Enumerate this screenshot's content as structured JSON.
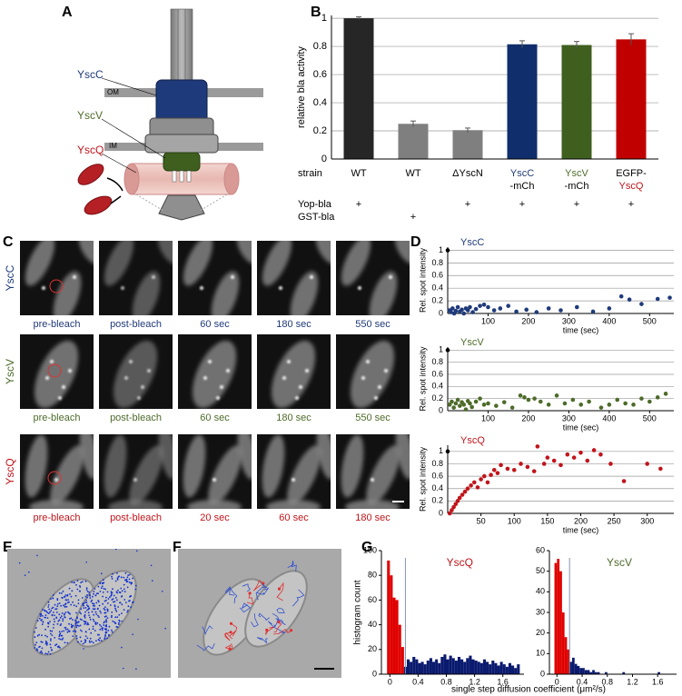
{
  "panel_labels": [
    "A",
    "B",
    "C",
    "D",
    "E",
    "F",
    "G"
  ],
  "diagram": {
    "labels": [
      "YscC",
      "YscV",
      "YscQ"
    ],
    "membranes": [
      "OM",
      "IM"
    ]
  },
  "microscopy": {
    "rows": [
      {
        "name": "YscC",
        "color": "#1f3a7a",
        "captions": [
          "pre-bleach",
          "post-bleach",
          "60 sec",
          "180 sec",
          "550 sec"
        ]
      },
      {
        "name": "YscV",
        "color": "#4d6b2a",
        "captions": [
          "pre-bleach",
          "post-bleach",
          "60 sec",
          "180 sec",
          "550 sec"
        ]
      },
      {
        "name": "YscQ",
        "color": "#c0151b",
        "captions": [
          "pre-bleach",
          "post-bleach",
          "20 sec",
          "60 sec",
          "180 sec"
        ]
      }
    ]
  },
  "chart_data": [
    {
      "type": "bar",
      "ylabel": "relative bla activity",
      "categories": [
        [
          "WT"
        ],
        [
          "WT"
        ],
        [
          "ΔYscN"
        ],
        [
          "YscC",
          "-mCh"
        ],
        [
          "YscV",
          "-mCh"
        ],
        [
          "EGFP-",
          "YscQ"
        ]
      ],
      "label_colors": [
        [
          "#000"
        ],
        [
          "#000"
        ],
        [
          "#000"
        ],
        [
          "#1f3a7a",
          "#000"
        ],
        [
          "#4d6b2a",
          "#000"
        ],
        [
          "#000",
          "#c0151b"
        ]
      ],
      "values": [
        1.0,
        0.25,
        0.205,
        0.815,
        0.81,
        0.85
      ],
      "errors": [
        0.01,
        0.02,
        0.015,
        0.025,
        0.025,
        0.04
      ],
      "colors": [
        "#262626",
        "#7f7f7f",
        "#7f7f7f",
        "#0f2e6b",
        "#3f5f1f",
        "#c00000"
      ],
      "ylim": [
        0,
        1.02
      ],
      "yticks": [
        0,
        0.2,
        0.4,
        0.6,
        0.8,
        1
      ],
      "grid": true,
      "row_label": "strain",
      "rows": [
        {
          "name": "Yop-bla",
          "marks": [
            "+",
            null,
            "+",
            "+",
            "+",
            "+"
          ]
        },
        {
          "name": "GST-bla",
          "marks": [
            null,
            "+",
            null,
            null,
            null,
            null
          ]
        }
      ]
    },
    {
      "type": "scatter",
      "title": "YscC",
      "color": "#1f3a7a",
      "first_color": "#000",
      "xlabel": "time (sec)",
      "ylabel": "Rel. spot intensity",
      "x": [
        0,
        4,
        8,
        12,
        16,
        20,
        25,
        30,
        35,
        40,
        45,
        50,
        55,
        62,
        70,
        80,
        90,
        100,
        115,
        130,
        150,
        170,
        195,
        220,
        250,
        280,
        320,
        360,
        400,
        430,
        450,
        480,
        520,
        550
      ],
      "y": [
        1,
        0.05,
        0.02,
        0.08,
        0,
        0.04,
        0.1,
        0.03,
        0.06,
        0,
        0.08,
        0.05,
        0.1,
        0.02,
        0.07,
        0.12,
        0.14,
        0.1,
        0.05,
        0.08,
        0.12,
        0.03,
        0.06,
        0.02,
        0.08,
        0.05,
        0.1,
        0.03,
        0.08,
        0.27,
        0.22,
        0.15,
        0.23,
        0.25
      ],
      "xlim": [
        0,
        560
      ],
      "ylim": [
        0,
        1.05
      ],
      "xticks": [
        100,
        200,
        300,
        400,
        500
      ],
      "yticks": [
        0,
        0.2,
        0.4,
        0.6,
        0.8,
        1
      ],
      "grid": true
    },
    {
      "type": "scatter",
      "title": "YscV",
      "color": "#4d6b2a",
      "first_color": "#000",
      "xlabel": "time (sec)",
      "ylabel": "Rel. spot intensity",
      "x": [
        0,
        5,
        10,
        15,
        20,
        25,
        30,
        35,
        40,
        45,
        50,
        55,
        60,
        70,
        80,
        90,
        100,
        120,
        140,
        160,
        180,
        190,
        200,
        215,
        230,
        250,
        270,
        290,
        310,
        330,
        350,
        380,
        400,
        420,
        440,
        460,
        480,
        500,
        520,
        540
      ],
      "y": [
        1,
        0.1,
        0.15,
        0.05,
        0.12,
        0.18,
        0.08,
        0.14,
        0.1,
        0.02,
        0.16,
        0.12,
        0.06,
        0.15,
        0.2,
        0.1,
        0.12,
        0.08,
        0.14,
        0.05,
        0.25,
        0.22,
        0.18,
        0.2,
        0.15,
        0.1,
        0.25,
        0.12,
        0.18,
        0.1,
        0.15,
        0.05,
        0.1,
        0.18,
        0.12,
        0.1,
        0.2,
        0.15,
        0.22,
        0.28
      ],
      "xlim": [
        0,
        560
      ],
      "ylim": [
        0,
        1.05
      ],
      "xticks": [
        100,
        200,
        300,
        400,
        500
      ],
      "yticks": [
        0,
        0.2,
        0.4,
        0.6,
        0.8,
        1
      ],
      "grid": true
    },
    {
      "type": "scatter",
      "title": "YscQ",
      "color": "#c0151b",
      "first_color": "#000",
      "xlabel": "time (sec)",
      "ylabel": "Rel. spot intensity",
      "x": [
        0,
        3,
        6,
        9,
        12,
        15,
        18,
        22,
        26,
        30,
        35,
        40,
        45,
        50,
        55,
        60,
        65,
        70,
        75,
        80,
        90,
        100,
        110,
        120,
        130,
        135,
        145,
        150,
        160,
        170,
        180,
        190,
        200,
        210,
        220,
        230,
        245,
        265,
        300,
        320
      ],
      "y": [
        1,
        0,
        0.05,
        0.1,
        0.15,
        0.2,
        0.25,
        0.3,
        0.35,
        0.4,
        0.45,
        0.5,
        0.42,
        0.55,
        0.6,
        0.5,
        0.62,
        0.7,
        0.65,
        0.78,
        0.72,
        0.7,
        0.8,
        0.75,
        0.68,
        1.08,
        0.8,
        0.9,
        0.85,
        0.78,
        0.95,
        0.9,
        0.98,
        0.85,
        1.02,
        0.95,
        0.8,
        0.52,
        0.8,
        0.72
      ],
      "xlim": [
        0,
        340
      ],
      "ylim": [
        0,
        1.1
      ],
      "xticks": [
        50,
        100,
        150,
        200,
        250,
        300
      ],
      "yticks": [
        0,
        0.2,
        0.4,
        0.6,
        0.8,
        1
      ],
      "grid": true
    },
    {
      "type": "histogram",
      "title": "YscQ",
      "title_color": "#c0151b",
      "ylabel": "histogram count",
      "xlabel": "single step diffusion coefficient (μm²/s)",
      "bins": [
        -0.04,
        0,
        0.04,
        0.08,
        0.12,
        0.16,
        0.2,
        0.24,
        0.28,
        0.32,
        0.36,
        0.4,
        0.44,
        0.48,
        0.52,
        0.56,
        0.6,
        0.64,
        0.68,
        0.72,
        0.76,
        0.8,
        0.84,
        0.88,
        0.92,
        0.96,
        1,
        1.04,
        1.08,
        1.12,
        1.16,
        1.2,
        1.24,
        1.28,
        1.32,
        1.36,
        1.4,
        1.44,
        1.48,
        1.52,
        1.56,
        1.6,
        1.64,
        1.68,
        1.72,
        1.76,
        1.8,
        1.84
      ],
      "counts": [
        92,
        80,
        62,
        60,
        40,
        22,
        6,
        12,
        10,
        14,
        12,
        9,
        10,
        8,
        11,
        13,
        10,
        12,
        9,
        14,
        16,
        12,
        15,
        13,
        11,
        14,
        12,
        10,
        13,
        15,
        12,
        11,
        10,
        9,
        12,
        10,
        8,
        11,
        9,
        7,
        10,
        8,
        6,
        9,
        7,
        5,
        8
      ],
      "colors": [
        "#e00000",
        "#0a1a6e"
      ],
      "cutoff": 0.22,
      "xlim": [
        -0.12,
        1.9
      ],
      "ylim": [
        0,
        100
      ],
      "xticks": [
        0,
        0.4,
        0.8,
        1.2,
        1.6
      ],
      "yticks": [
        0,
        20,
        40,
        60,
        80,
        100
      ]
    },
    {
      "type": "histogram",
      "title": "YscV",
      "title_color": "#4d6b2a",
      "bins": [
        -0.04,
        0,
        0.04,
        0.08,
        0.12,
        0.16,
        0.2,
        0.24,
        0.28,
        0.32,
        0.36,
        0.4,
        0.44,
        0.48,
        0.52,
        0.56,
        0.6,
        0.64,
        0.68,
        0.72,
        0.76,
        0.8,
        0.84,
        0.88,
        0.92,
        0.96,
        1,
        1.04,
        1.08,
        1.12,
        1.16,
        1.2,
        1.24,
        1.28,
        1.32,
        1.36,
        1.4,
        1.44,
        1.48,
        1.52,
        1.56,
        1.6,
        1.64,
        1.68,
        1.72,
        1.76,
        1.8,
        1.84
      ],
      "counts": [
        54,
        56,
        50,
        30,
        18,
        12,
        6,
        8,
        5,
        4,
        3,
        3,
        2,
        2,
        1,
        2,
        1,
        1,
        0,
        0,
        1,
        0,
        0,
        0,
        0,
        0,
        0,
        1,
        0,
        0,
        0,
        0,
        0,
        0,
        0,
        0,
        0,
        0,
        0,
        0,
        0,
        1,
        0,
        0,
        0,
        0,
        0
      ],
      "colors": [
        "#e00000",
        "#0a1a6e"
      ],
      "cutoff": 0.2,
      "xlim": [
        -0.12,
        1.9
      ],
      "ylim": [
        0,
        60
      ],
      "xticks": [
        0,
        0.4,
        0.8,
        1.2,
        1.6
      ],
      "yticks": [
        0,
        10,
        20,
        30,
        40,
        50,
        60
      ]
    }
  ]
}
